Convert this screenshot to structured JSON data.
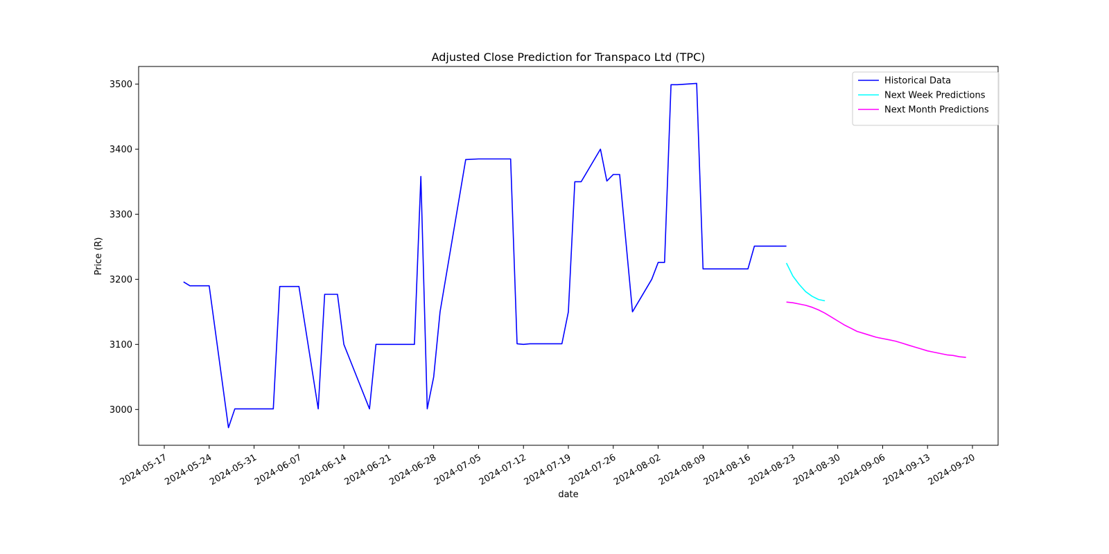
{
  "chart_data": {
    "type": "line",
    "title": "Adjusted Close Prediction for Transpaco Ltd (TPC)",
    "xlabel": "date",
    "ylabel": "Price (R)",
    "x_type": "date",
    "xlim": [
      "2024-05-13",
      "2024-09-24"
    ],
    "ylim": [
      2945,
      3527
    ],
    "x_ticks": [
      "2024-05-17",
      "2024-05-24",
      "2024-05-31",
      "2024-06-07",
      "2024-06-14",
      "2024-06-21",
      "2024-06-28",
      "2024-07-05",
      "2024-07-12",
      "2024-07-19",
      "2024-07-26",
      "2024-08-02",
      "2024-08-09",
      "2024-08-16",
      "2024-08-23",
      "2024-08-30",
      "2024-09-06",
      "2024-09-13",
      "2024-09-20"
    ],
    "y_ticks": [
      3000,
      3100,
      3200,
      3300,
      3400,
      3500
    ],
    "grid": false,
    "legend_position": "top-right",
    "series": [
      {
        "name": "Historical Data",
        "color": "#0000ff",
        "points": [
          [
            "2024-05-20",
            3196
          ],
          [
            "2024-05-21",
            3190
          ],
          [
            "2024-05-24",
            3190
          ],
          [
            "2024-05-27",
            2972
          ],
          [
            "2024-05-28",
            3001
          ],
          [
            "2024-06-03",
            3001
          ],
          [
            "2024-06-04",
            3189
          ],
          [
            "2024-06-07",
            3189
          ],
          [
            "2024-06-10",
            3001
          ],
          [
            "2024-06-11",
            3177
          ],
          [
            "2024-06-13",
            3177
          ],
          [
            "2024-06-14",
            3100
          ],
          [
            "2024-06-18",
            3001
          ],
          [
            "2024-06-19",
            3100
          ],
          [
            "2024-06-25",
            3100
          ],
          [
            "2024-06-26",
            3358
          ],
          [
            "2024-06-27",
            3001
          ],
          [
            "2024-06-28",
            3050
          ],
          [
            "2024-06-29",
            3150
          ],
          [
            "2024-07-03",
            3384
          ],
          [
            "2024-07-05",
            3385
          ],
          [
            "2024-07-10",
            3385
          ],
          [
            "2024-07-11",
            3101
          ],
          [
            "2024-07-12",
            3100
          ],
          [
            "2024-07-13",
            3101
          ],
          [
            "2024-07-18",
            3101
          ],
          [
            "2024-07-19",
            3150
          ],
          [
            "2024-07-20",
            3350
          ],
          [
            "2024-07-21",
            3350
          ],
          [
            "2024-07-24",
            3400
          ],
          [
            "2024-07-25",
            3351
          ],
          [
            "2024-07-26",
            3361
          ],
          [
            "2024-07-27",
            3361
          ],
          [
            "2024-07-29",
            3150
          ],
          [
            "2024-08-01",
            3200
          ],
          [
            "2024-08-02",
            3226
          ],
          [
            "2024-08-03",
            3226
          ],
          [
            "2024-08-04",
            3499
          ],
          [
            "2024-08-05",
            3499
          ],
          [
            "2024-08-08",
            3501
          ],
          [
            "2024-08-09",
            3216
          ],
          [
            "2024-08-16",
            3216
          ],
          [
            "2024-08-17",
            3251
          ],
          [
            "2024-08-22",
            3251
          ]
        ]
      },
      {
        "name": "Next Week Predictions",
        "color": "#00ffff",
        "points": [
          [
            "2024-08-22",
            3225
          ],
          [
            "2024-08-23",
            3205
          ],
          [
            "2024-08-24",
            3192
          ],
          [
            "2024-08-25",
            3181
          ],
          [
            "2024-08-26",
            3174
          ],
          [
            "2024-08-27",
            3169
          ],
          [
            "2024-08-28",
            3167
          ]
        ]
      },
      {
        "name": "Next Month Predictions",
        "color": "#ff00ff",
        "points": [
          [
            "2024-08-22",
            3165
          ],
          [
            "2024-08-23",
            3164
          ],
          [
            "2024-08-24",
            3162
          ],
          [
            "2024-08-25",
            3160
          ],
          [
            "2024-08-26",
            3157
          ],
          [
            "2024-08-27",
            3153
          ],
          [
            "2024-08-28",
            3148
          ],
          [
            "2024-08-29",
            3142
          ],
          [
            "2024-08-30",
            3136
          ],
          [
            "2024-08-31",
            3130
          ],
          [
            "2024-09-01",
            3125
          ],
          [
            "2024-09-02",
            3120
          ],
          [
            "2024-09-03",
            3117
          ],
          [
            "2024-09-04",
            3114
          ],
          [
            "2024-09-05",
            3111
          ],
          [
            "2024-09-06",
            3109
          ],
          [
            "2024-09-07",
            3107
          ],
          [
            "2024-09-08",
            3105
          ],
          [
            "2024-09-09",
            3102
          ],
          [
            "2024-09-10",
            3099
          ],
          [
            "2024-09-11",
            3096
          ],
          [
            "2024-09-12",
            3093
          ],
          [
            "2024-09-13",
            3090
          ],
          [
            "2024-09-14",
            3088
          ],
          [
            "2024-09-15",
            3086
          ],
          [
            "2024-09-16",
            3084
          ],
          [
            "2024-09-17",
            3083
          ],
          [
            "2024-09-18",
            3081
          ],
          [
            "2024-09-19",
            3080
          ]
        ]
      }
    ]
  }
}
